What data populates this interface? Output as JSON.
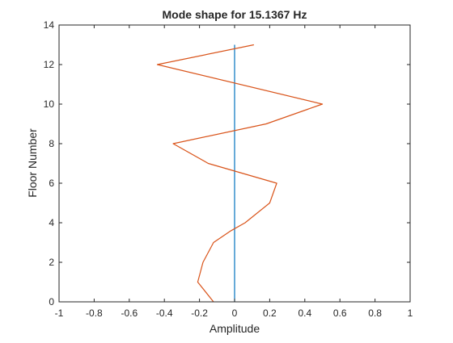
{
  "chart_data": {
    "type": "line",
    "title": "Mode shape for 15.1367 Hz",
    "xlabel": "Amplitude",
    "ylabel": "Floor Number",
    "xlim": [
      -1,
      1
    ],
    "ylim": [
      0,
      14
    ],
    "x_ticks": [
      -1,
      -0.8,
      -0.6,
      -0.4,
      -0.2,
      0,
      0.2,
      0.4,
      0.6,
      0.8,
      1
    ],
    "x_tick_labels": [
      "-1",
      "-0.8",
      "-0.6",
      "-0.4",
      "-0.2",
      "0",
      "0.2",
      "0.4",
      "0.6",
      "0.8",
      "1"
    ],
    "y_ticks": [
      0,
      2,
      4,
      6,
      8,
      10,
      12,
      14
    ],
    "y_tick_labels": [
      "0",
      "2",
      "4",
      "6",
      "8",
      "10",
      "12",
      "14"
    ],
    "grid": false,
    "series": [
      {
        "color": "#0072BD",
        "points": [
          [
            0,
            0
          ],
          [
            0,
            13
          ]
        ]
      },
      {
        "color": "#D95319",
        "points": [
          [
            -0.12,
            0
          ],
          [
            -0.21,
            1
          ],
          [
            -0.18,
            2
          ],
          [
            -0.12,
            3
          ],
          [
            -0.02,
            3.6
          ],
          [
            0.06,
            4
          ],
          [
            0.2,
            5
          ],
          [
            0.24,
            6
          ],
          [
            -0.15,
            7
          ],
          [
            -0.35,
            8
          ],
          [
            0.18,
            9
          ],
          [
            0.5,
            10
          ],
          [
            -0.44,
            12
          ],
          [
            0.11,
            13
          ]
        ]
      }
    ]
  }
}
